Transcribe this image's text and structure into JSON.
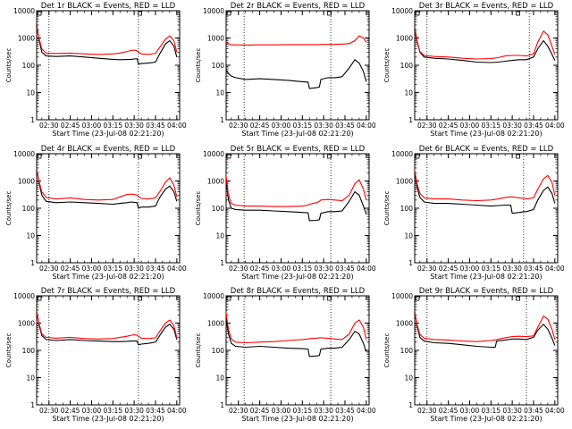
{
  "chart_data": [
    {
      "title": "Det 1r BLACK = Events, RED = LLD",
      "type": "line",
      "xlabel": "Start Time (23-Jul-08 02:21:20)",
      "ylabel": "Counts/sec",
      "y_scale": "log",
      "ylim": [
        1,
        10000
      ],
      "x_ticks": [
        "02:30",
        "02:45",
        "03:00",
        "03:15",
        "03:30",
        "03:45",
        "04:00"
      ],
      "y_ticks": [
        "1",
        "10",
        "100",
        "1000",
        "10000"
      ],
      "vlines": [
        "02:30",
        "03:33"
      ],
      "x": [
        "02:21",
        "02:23",
        "02:25",
        "02:28",
        "02:35",
        "02:45",
        "02:55",
        "03:05",
        "03:15",
        "03:20",
        "03:25",
        "03:28",
        "03:30",
        "03:32",
        "03:33",
        "03:35",
        "03:40",
        "03:45",
        "03:48",
        "03:52",
        "03:55",
        "03:58",
        "04:00"
      ],
      "series": [
        {
          "name": "Events",
          "color": "#000000",
          "values": [
            4000,
            900,
            300,
            220,
            210,
            220,
            200,
            180,
            165,
            160,
            162,
            165,
            170,
            175,
            110,
            115,
            120,
            130,
            260,
            600,
            800,
            500,
            200
          ]
        },
        {
          "name": "LLD",
          "color": "#ff0000",
          "values": [
            3000,
            1000,
            400,
            280,
            270,
            280,
            260,
            250,
            260,
            280,
            320,
            350,
            360,
            340,
            300,
            260,
            250,
            270,
            450,
            900,
            1200,
            800,
            300
          ]
        }
      ]
    },
    {
      "title": "Det 2r BLACK = Events, RED = LLD",
      "type": "line",
      "xlabel": "Start Time (23-Jul-08 02:21:20)",
      "ylabel": "Counts/sec",
      "y_scale": "log",
      "ylim": [
        1,
        10000
      ],
      "x_ticks": [
        "02:30",
        "02:45",
        "03:00",
        "03:15",
        "03:30",
        "03:45",
        "04:00"
      ],
      "y_ticks": [
        "1",
        "10",
        "100",
        "1000",
        "10000"
      ],
      "vlines": [
        "02:34",
        "03:35"
      ],
      "x": [
        "02:21",
        "02:23",
        "02:25",
        "02:28",
        "02:35",
        "02:45",
        "02:55",
        "03:05",
        "03:15",
        "03:19",
        "03:20",
        "03:25",
        "03:27",
        "03:28",
        "03:33",
        "03:38",
        "03:43",
        "03:48",
        "03:52",
        "03:55",
        "03:58",
        "04:00"
      ],
      "series": [
        {
          "name": "Events",
          "color": "#000000",
          "values": [
            70,
            50,
            40,
            35,
            30,
            32,
            30,
            28,
            25,
            24,
            14,
            15,
            16,
            30,
            35,
            35,
            38,
            80,
            160,
            120,
            60,
            25
          ]
        },
        {
          "name": "LLD",
          "color": "#ff0000",
          "values": [
            700,
            620,
            560,
            560,
            550,
            560,
            560,
            570,
            570,
            570,
            570,
            570,
            570,
            580,
            580,
            580,
            600,
            620,
            800,
            1200,
            1000,
            700
          ]
        }
      ]
    },
    {
      "title": "Det 3r BLACK = Events, RED = LLD",
      "type": "line",
      "xlabel": "Start Time (23-Jul-08 02:21:20)",
      "ylabel": "Counts/sec",
      "y_scale": "log",
      "ylim": [
        1,
        10000
      ],
      "x_ticks": [
        "02:30",
        "02:45",
        "03:00",
        "03:15",
        "03:30",
        "03:45",
        "04:00"
      ],
      "y_ticks": [
        "1",
        "10",
        "100",
        "1000",
        "10000"
      ],
      "vlines": [
        "02:30",
        "03:42"
      ],
      "x": [
        "02:21",
        "02:23",
        "02:25",
        "02:28",
        "02:35",
        "02:45",
        "02:55",
        "03:05",
        "03:15",
        "03:20",
        "03:25",
        "03:30",
        "03:35",
        "03:40",
        "03:45",
        "03:48",
        "03:52",
        "03:55",
        "03:58",
        "04:00"
      ],
      "series": [
        {
          "name": "Events",
          "color": "#000000",
          "values": [
            3000,
            800,
            300,
            200,
            180,
            170,
            150,
            130,
            125,
            130,
            140,
            150,
            160,
            160,
            200,
            400,
            800,
            500,
            250,
            150
          ]
        },
        {
          "name": "LLD",
          "color": "#ff0000",
          "values": [
            2500,
            700,
            320,
            230,
            210,
            200,
            180,
            170,
            175,
            190,
            220,
            230,
            230,
            220,
            260,
            700,
            1800,
            1300,
            500,
            250
          ]
        }
      ]
    },
    {
      "title": "Det 4r BLACK = Events, RED = LLD",
      "type": "line",
      "xlabel": "Start Time (23-Jul-08 02:21:20)",
      "ylabel": "Counts/sec",
      "y_scale": "log",
      "ylim": [
        1,
        10000
      ],
      "x_ticks": [
        "02:30",
        "02:45",
        "03:00",
        "03:15",
        "03:30",
        "03:45",
        "04:00"
      ],
      "y_ticks": [
        "1",
        "10",
        "100",
        "1000",
        "10000"
      ],
      "vlines": [
        "02:30",
        "03:33"
      ],
      "x": [
        "02:21",
        "02:23",
        "02:25",
        "02:28",
        "02:35",
        "02:45",
        "02:55",
        "03:05",
        "03:15",
        "03:20",
        "03:25",
        "03:28",
        "03:30",
        "03:32",
        "03:33",
        "03:35",
        "03:40",
        "03:45",
        "03:48",
        "03:52",
        "03:55",
        "03:58",
        "04:00"
      ],
      "series": [
        {
          "name": "Events",
          "color": "#000000",
          "values": [
            3500,
            900,
            300,
            180,
            160,
            170,
            160,
            150,
            140,
            150,
            160,
            170,
            165,
            160,
            100,
            110,
            110,
            120,
            250,
            500,
            650,
            400,
            180
          ]
        },
        {
          "name": "LLD",
          "color": "#ff0000",
          "values": [
            3000,
            1000,
            400,
            250,
            220,
            240,
            210,
            200,
            210,
            260,
            320,
            330,
            320,
            300,
            270,
            230,
            220,
            240,
            400,
            900,
            1300,
            700,
            260
          ]
        }
      ]
    },
    {
      "title": "Det 5r BLACK = Events, RED = LLD",
      "type": "line",
      "xlabel": "Start Time (23-Jul-08 02:21:20)",
      "ylabel": "Counts/sec",
      "y_scale": "log",
      "ylim": [
        1,
        10000
      ],
      "x_ticks": [
        "02:30",
        "02:45",
        "03:00",
        "03:15",
        "03:30",
        "03:45",
        "04:00"
      ],
      "y_ticks": [
        "1",
        "10",
        "100",
        "1000",
        "10000"
      ],
      "vlines": [
        "02:34",
        "03:35"
      ],
      "x": [
        "02:21",
        "02:23",
        "02:25",
        "02:28",
        "02:35",
        "02:45",
        "02:55",
        "03:05",
        "03:15",
        "03:19",
        "03:20",
        "03:25",
        "03:27",
        "03:28",
        "03:33",
        "03:38",
        "03:43",
        "03:48",
        "03:52",
        "03:55",
        "03:58",
        "04:00"
      ],
      "series": [
        {
          "name": "Events",
          "color": "#000000",
          "values": [
            1500,
            200,
            100,
            90,
            85,
            85,
            80,
            75,
            70,
            68,
            35,
            36,
            38,
            65,
            75,
            75,
            80,
            180,
            400,
            300,
            120,
            60
          ]
        },
        {
          "name": "LLD",
          "color": "#ff0000",
          "values": [
            2000,
            300,
            150,
            130,
            120,
            120,
            115,
            115,
            120,
            130,
            140,
            160,
            180,
            200,
            210,
            200,
            190,
            300,
            800,
            1100,
            500,
            200
          ]
        }
      ]
    },
    {
      "title": "Det 6r BLACK = Events, RED = LLD",
      "type": "line",
      "xlabel": "Start Time (23-Jul-08 02:21:20)",
      "ylabel": "Counts/sec",
      "y_scale": "log",
      "ylim": [
        1,
        10000
      ],
      "x_ticks": [
        "02:30",
        "02:45",
        "03:00",
        "03:15",
        "03:30",
        "03:45",
        "04:00"
      ],
      "y_ticks": [
        "1",
        "10",
        "100",
        "1000",
        "10000"
      ],
      "vlines": [
        "02:30",
        "03:38"
      ],
      "x": [
        "02:21",
        "02:23",
        "02:25",
        "02:28",
        "02:35",
        "02:45",
        "02:55",
        "03:05",
        "03:15",
        "03:20",
        "03:25",
        "03:29",
        "03:30",
        "03:35",
        "03:38",
        "03:40",
        "03:45",
        "03:48",
        "03:52",
        "03:55",
        "03:58",
        "04:00"
      ],
      "series": [
        {
          "name": "Events",
          "color": "#000000",
          "values": [
            3000,
            600,
            250,
            170,
            150,
            150,
            140,
            130,
            120,
            125,
            130,
            130,
            65,
            70,
            75,
            75,
            90,
            200,
            450,
            600,
            350,
            150
          ]
        },
        {
          "name": "LLD",
          "color": "#ff0000",
          "values": [
            3000,
            800,
            350,
            240,
            220,
            220,
            200,
            190,
            200,
            220,
            250,
            260,
            260,
            240,
            230,
            220,
            240,
            500,
            1200,
            1600,
            900,
            300
          ]
        }
      ]
    },
    {
      "title": "Det 7r BLACK = Events, RED = LLD",
      "type": "line",
      "xlabel": "Start Time (23-Jul-08 02:21:20)",
      "ylabel": "Counts/sec",
      "y_scale": "log",
      "ylim": [
        1,
        10000
      ],
      "x_ticks": [
        "02:30",
        "02:45",
        "03:00",
        "03:15",
        "03:30",
        "03:45",
        "04:00"
      ],
      "y_ticks": [
        "1",
        "10",
        "100",
        "1000",
        "10000"
      ],
      "vlines": [
        "02:30",
        "03:33"
      ],
      "x": [
        "02:21",
        "02:23",
        "02:25",
        "02:28",
        "02:35",
        "02:45",
        "02:55",
        "03:05",
        "03:15",
        "03:20",
        "03:25",
        "03:28",
        "03:30",
        "03:32",
        "03:33",
        "03:35",
        "03:40",
        "03:45",
        "03:48",
        "03:52",
        "03:55",
        "03:58",
        "04:00"
      ],
      "series": [
        {
          "name": "Events",
          "color": "#000000",
          "values": [
            3500,
            900,
            350,
            250,
            230,
            250,
            230,
            220,
            210,
            210,
            215,
            220,
            220,
            220,
            160,
            170,
            180,
            200,
            350,
            700,
            900,
            600,
            250
          ]
        },
        {
          "name": "LLD",
          "color": "#ff0000",
          "values": [
            3000,
            1000,
            400,
            300,
            280,
            300,
            270,
            260,
            270,
            300,
            330,
            360,
            370,
            360,
            330,
            280,
            270,
            290,
            500,
            1000,
            1300,
            800,
            300
          ]
        }
      ]
    },
    {
      "title": "Det 8r BLACK = Events, RED = LLD",
      "type": "line",
      "xlabel": "Start Time (23-Jul-08 02:21:20)",
      "ylabel": "Counts/sec",
      "y_scale": "log",
      "ylim": [
        1,
        10000
      ],
      "x_ticks": [
        "02:30",
        "02:45",
        "03:00",
        "03:15",
        "03:30",
        "03:45",
        "04:00"
      ],
      "y_ticks": [
        "1",
        "10",
        "100",
        "1000",
        "10000"
      ],
      "vlines": [
        "02:34",
        "03:35"
      ],
      "x": [
        "02:21",
        "02:23",
        "02:25",
        "02:28",
        "02:35",
        "02:45",
        "02:55",
        "03:05",
        "03:15",
        "03:19",
        "03:20",
        "03:25",
        "03:27",
        "03:28",
        "03:33",
        "03:38",
        "03:43",
        "03:48",
        "03:52",
        "03:55",
        "03:58",
        "04:00"
      ],
      "series": [
        {
          "name": "Events",
          "color": "#000000",
          "values": [
            2000,
            400,
            180,
            140,
            130,
            140,
            130,
            120,
            115,
            110,
            60,
            62,
            65,
            110,
            120,
            120,
            130,
            250,
            500,
            400,
            180,
            90
          ]
        },
        {
          "name": "LLD",
          "color": "#ff0000",
          "values": [
            3000,
            600,
            260,
            200,
            190,
            200,
            210,
            230,
            250,
            260,
            270,
            280,
            290,
            290,
            280,
            260,
            250,
            400,
            1000,
            1300,
            700,
            250
          ]
        }
      ]
    },
    {
      "title": "Det 9r BLACK = Events, RED = LLD",
      "type": "line",
      "xlabel": "Start Time (23-Jul-08 02:21:20)",
      "ylabel": "Counts/sec",
      "y_scale": "log",
      "ylim": [
        1,
        10000
      ],
      "x_ticks": [
        "02:30",
        "02:45",
        "03:00",
        "03:15",
        "03:30",
        "03:45",
        "04:00"
      ],
      "y_ticks": [
        "1",
        "10",
        "100",
        "1000",
        "10000"
      ],
      "vlines": [
        "02:30",
        "03:40"
      ],
      "x": [
        "02:21",
        "02:23",
        "02:25",
        "02:28",
        "02:35",
        "02:45",
        "02:55",
        "03:05",
        "03:15",
        "03:18",
        "03:19",
        "03:25",
        "03:30",
        "03:35",
        "03:40",
        "03:45",
        "03:48",
        "03:52",
        "03:55",
        "03:58",
        "04:00"
      ],
      "series": [
        {
          "name": "Events",
          "color": "#000000",
          "values": [
            3500,
            800,
            300,
            220,
            190,
            180,
            160,
            140,
            130,
            130,
            220,
            240,
            260,
            260,
            250,
            300,
            550,
            900,
            600,
            280,
            150
          ]
        },
        {
          "name": "LLD",
          "color": "#ff0000",
          "values": [
            3000,
            900,
            380,
            280,
            250,
            240,
            220,
            210,
            230,
            240,
            250,
            290,
            320,
            330,
            320,
            340,
            700,
            1800,
            1400,
            600,
            250
          ]
        }
      ]
    }
  ]
}
